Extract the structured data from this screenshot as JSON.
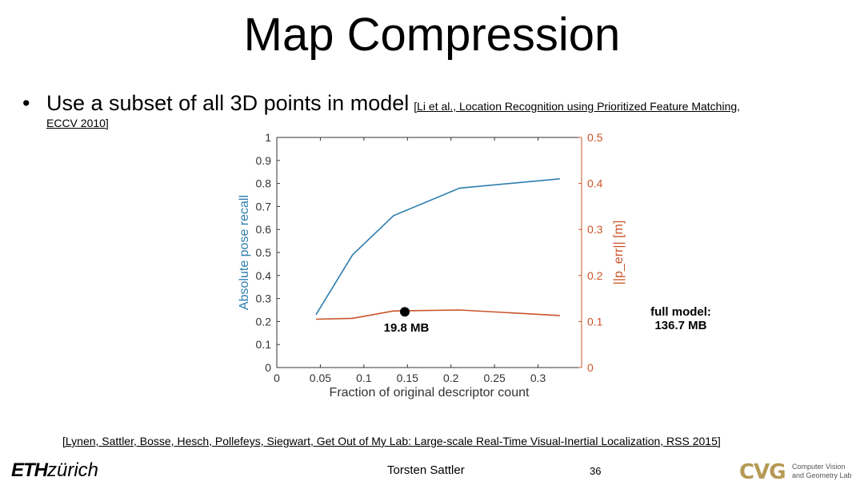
{
  "slide": {
    "title": "Map Compression",
    "bullet_symbol": "•",
    "bullet_text": "Use a subset of all 3D points in model",
    "citation_line1": "[Li et al., Location Recognition using Prioritized Feature Matching,",
    "citation_line2": "ECCV 2010]",
    "annotation_point": "19.8 MB",
    "annotation_full_line1": "full model:",
    "annotation_full_line2": "136.7 MB",
    "reference": "[Lynen, Sattler, Bosse, Hesch, Pollefeys, Siegwart, Get Out of My Lab: Large-scale Real-Time Visual-Inertial Localization, RSS 2015]",
    "footer_author": "Torsten Sattler",
    "footer_page": "36",
    "logo_eth_bold": "ETH",
    "logo_eth_rest": "zürich",
    "logo_cvg": "CVG",
    "logo_cvg_text_line1": "Computer Vision",
    "logo_cvg_text_line2": "and Geometry Lab"
  },
  "colors": {
    "recall_series": "#2e7eae",
    "error_series": "#c9542a",
    "axis": "#333333"
  },
  "chart_data": {
    "type": "line",
    "xlabel": "Fraction of original descriptor count",
    "ylabel_left": "Absolute pose recall",
    "ylabel_right": "||p_err|| [m]",
    "xlim": [
      0,
      0.35
    ],
    "ylim_left": [
      0,
      1
    ],
    "ylim_right": [
      0,
      0.5
    ],
    "x_ticks": [
      0,
      0.05,
      0.1,
      0.15,
      0.2,
      0.25,
      0.3
    ],
    "x_tick_labels": [
      "0",
      "0.05",
      "0.1",
      "0.15",
      "0.2",
      "0.25",
      "0.3"
    ],
    "y_left_ticks": [
      0,
      0.1,
      0.2,
      0.3,
      0.4,
      0.5,
      0.6,
      0.7,
      0.8,
      0.9,
      1
    ],
    "y_left_tick_labels": [
      "0",
      "0.1",
      "0.2",
      "0.3",
      "0.4",
      "0.5",
      "0.6",
      "0.7",
      "0.8",
      "0.9",
      "1"
    ],
    "y_right_ticks": [
      0,
      0.1,
      0.2,
      0.3,
      0.4,
      0.5
    ],
    "y_right_tick_labels": [
      "0",
      "0.1",
      "0.2",
      "0.3",
      "0.4",
      "0.5"
    ],
    "grid": false,
    "series": [
      {
        "axis": "left",
        "x": [
          0.045,
          0.087,
          0.134,
          0.21,
          0.325
        ],
        "y": [
          0.23,
          0.49,
          0.66,
          0.78,
          0.82
        ]
      },
      {
        "axis": "right",
        "x": [
          0.045,
          0.087,
          0.134,
          0.21,
          0.325
        ],
        "y": [
          0.105,
          0.107,
          0.123,
          0.125,
          0.113
        ]
      }
    ],
    "marker": {
      "x": 0.147,
      "y": 0.121,
      "axis": "right"
    }
  }
}
